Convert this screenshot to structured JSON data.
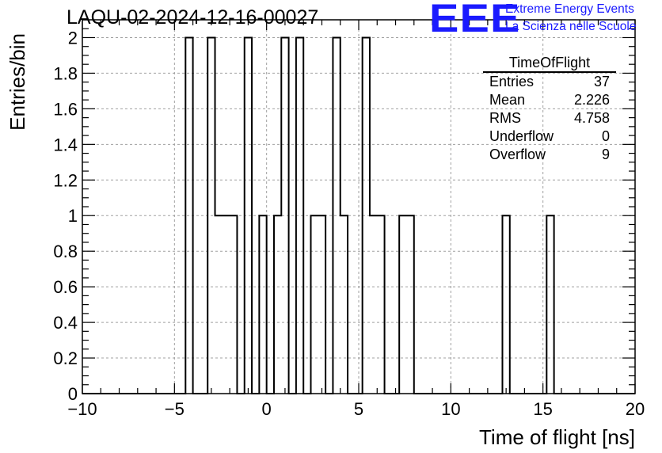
{
  "header": {
    "title": "LAQU-02-2024-12-16-00027",
    "logo_text": "EEE",
    "brand_line1": "Extreme Energy Events",
    "brand_line2": "La Scienza nelle Scuole",
    "brand_color": "#1a1aff"
  },
  "stats_box": {
    "title": "TimeOfFlight",
    "rows": [
      {
        "label": "Entries",
        "value": "37"
      },
      {
        "label": "Mean",
        "value": "2.226"
      },
      {
        "label": "RMS",
        "value": "4.758"
      },
      {
        "label": "Underflow",
        "value": "0"
      },
      {
        "label": "Overflow",
        "value": "9"
      }
    ]
  },
  "chart_data": {
    "type": "bar",
    "style": "step-histogram",
    "title": "LAQU-02-2024-12-16-00027",
    "xlabel": "Time of flight [ns]",
    "ylabel": "Entries/bin",
    "xlim": [
      -10,
      20
    ],
    "ylim": [
      0,
      2.1
    ],
    "bin_width": 0.4,
    "grid": true,
    "line_color": "#000000",
    "x_ticks": [
      -10,
      -5,
      0,
      5,
      10,
      15,
      20
    ],
    "x_tick_labels": [
      "−10",
      "−5",
      "0",
      "5",
      "10",
      "15",
      "20"
    ],
    "y_ticks": [
      0,
      0.2,
      0.4,
      0.6,
      0.8,
      1,
      1.2,
      1.4,
      1.6,
      1.8,
      2
    ],
    "y_tick_labels": [
      "0",
      "0.2",
      "0.4",
      "0.6",
      "0.8",
      "1",
      "1.2",
      "1.4",
      "1.6",
      "1.8",
      "2"
    ],
    "bins": [
      {
        "x_low": -4.4,
        "x_high": -4.0,
        "count": 2
      },
      {
        "x_low": -3.2,
        "x_high": -2.8,
        "count": 2
      },
      {
        "x_low": -2.8,
        "x_high": -2.4,
        "count": 1
      },
      {
        "x_low": -2.4,
        "x_high": -2.0,
        "count": 1
      },
      {
        "x_low": -2.0,
        "x_high": -1.6,
        "count": 1
      },
      {
        "x_low": -1.2,
        "x_high": -0.8,
        "count": 2
      },
      {
        "x_low": -0.4,
        "x_high": 0.0,
        "count": 1
      },
      {
        "x_low": 0.4,
        "x_high": 0.8,
        "count": 1
      },
      {
        "x_low": 0.8,
        "x_high": 1.2,
        "count": 2
      },
      {
        "x_low": 1.6,
        "x_high": 2.0,
        "count": 2
      },
      {
        "x_low": 2.4,
        "x_high": 2.8,
        "count": 1
      },
      {
        "x_low": 2.8,
        "x_high": 3.2,
        "count": 1
      },
      {
        "x_low": 3.6,
        "x_high": 4.0,
        "count": 2
      },
      {
        "x_low": 4.0,
        "x_high": 4.4,
        "count": 1
      },
      {
        "x_low": 5.2,
        "x_high": 5.6,
        "count": 2
      },
      {
        "x_low": 5.6,
        "x_high": 6.0,
        "count": 1
      },
      {
        "x_low": 6.0,
        "x_high": 6.4,
        "count": 1
      },
      {
        "x_low": 7.2,
        "x_high": 7.6,
        "count": 1
      },
      {
        "x_low": 7.6,
        "x_high": 8.0,
        "count": 1
      },
      {
        "x_low": 12.8,
        "x_high": 13.2,
        "count": 1
      },
      {
        "x_low": 15.2,
        "x_high": 15.6,
        "count": 1
      }
    ]
  }
}
